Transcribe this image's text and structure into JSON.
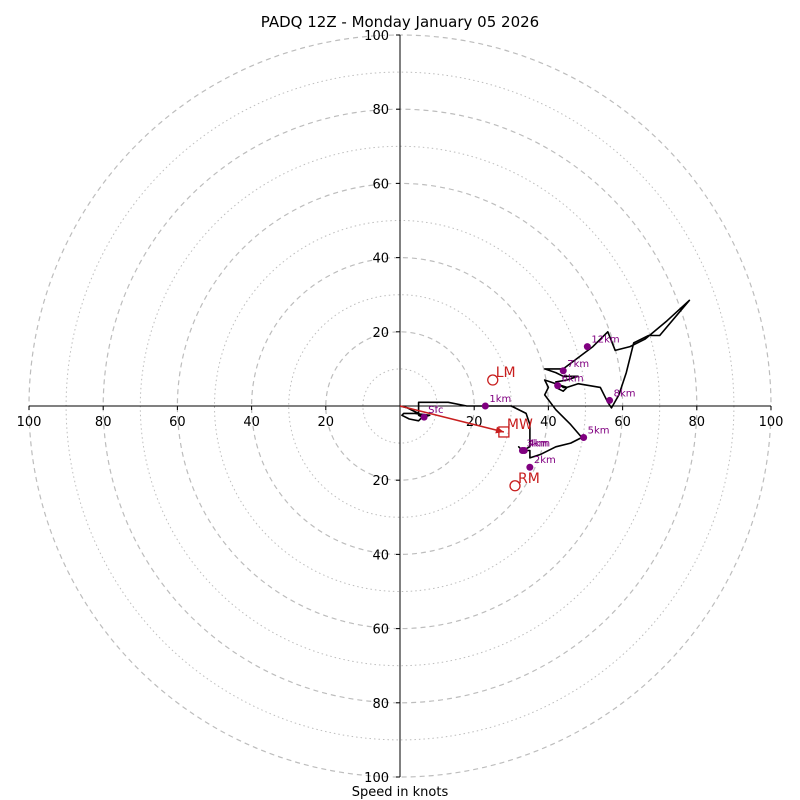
{
  "chart_data": {
    "type": "hodograph",
    "title": "PADQ 12Z - Monday January 05 2026",
    "xlabel": "Speed in knots",
    "ring_values": [
      10,
      20,
      30,
      40,
      50,
      60,
      70,
      80,
      90,
      100
    ],
    "axis_range": [
      -100,
      100
    ],
    "tick_labels": {
      "x_negative": [
        "100",
        "80",
        "60",
        "40",
        "20"
      ],
      "x_positive": [
        "20",
        "40",
        "60",
        "80",
        "100"
      ],
      "y_positive": [
        "100",
        "80",
        "60",
        "40",
        "20"
      ],
      "y_negative": [
        "20",
        "40",
        "60",
        "80",
        "100"
      ]
    },
    "trace": [
      [
        0,
        0
      ],
      [
        2,
        -0.5
      ],
      [
        4,
        -1.5
      ],
      [
        5,
        -2
      ],
      [
        6.5,
        -3
      ],
      [
        8,
        -2.5
      ],
      [
        4,
        -2
      ],
      [
        1,
        -2
      ],
      [
        0.5,
        -2.5
      ],
      [
        2.5,
        -3.5
      ],
      [
        5,
        -4
      ],
      [
        6,
        -3
      ],
      [
        5,
        -2.5
      ],
      [
        5,
        1
      ],
      [
        8,
        1
      ],
      [
        13,
        1
      ],
      [
        18,
        0
      ],
      [
        24,
        0
      ],
      [
        30,
        0
      ],
      [
        34,
        -2
      ],
      [
        35,
        -5
      ],
      [
        35,
        -8
      ],
      [
        35,
        -11
      ],
      [
        33,
        -12
      ],
      [
        32,
        -11
      ],
      [
        33,
        -12
      ],
      [
        35,
        -12
      ],
      [
        35,
        -14
      ],
      [
        38,
        -13
      ],
      [
        42,
        -11
      ],
      [
        46,
        -10
      ],
      [
        49,
        -8.5
      ],
      [
        46,
        -5
      ],
      [
        42,
        -1
      ],
      [
        39,
        3
      ],
      [
        40,
        5
      ],
      [
        39,
        7
      ],
      [
        42,
        6
      ],
      [
        45,
        5
      ],
      [
        48,
        6
      ],
      [
        54,
        5
      ],
      [
        56,
        1
      ],
      [
        57,
        -0.5
      ],
      [
        59,
        3
      ],
      [
        61,
        9
      ],
      [
        63,
        17
      ],
      [
        67,
        19
      ],
      [
        70,
        19
      ],
      [
        78,
        28.5
      ],
      [
        72,
        23
      ],
      [
        66,
        18
      ],
      [
        62,
        16
      ],
      [
        58,
        15
      ],
      [
        56,
        20
      ],
      [
        52,
        16
      ],
      [
        44,
        10
      ],
      [
        39,
        10
      ],
      [
        42,
        9
      ],
      [
        44,
        8
      ],
      [
        48,
        8
      ],
      [
        45,
        7
      ],
      [
        42,
        6.5
      ],
      [
        44,
        5
      ],
      [
        45,
        5
      ],
      [
        44,
        4
      ],
      [
        42,
        5
      ]
    ],
    "height_markers": [
      {
        "label": "Sfc",
        "u": 6.5,
        "v": -3
      },
      {
        "label": "1km",
        "u": 23,
        "v": 0
      },
      {
        "label": "2km",
        "u": 35,
        "v": -16.5
      },
      {
        "label": "3km",
        "u": 33,
        "v": -12
      },
      {
        "label": "4km",
        "u": 33.5,
        "v": -12
      },
      {
        "label": "5km",
        "u": 49.5,
        "v": -8.5
      },
      {
        "label": "6km",
        "u": 42.5,
        "v": 5.5
      },
      {
        "label": "7km",
        "u": 44,
        "v": 9.5
      },
      {
        "label": "8km",
        "u": 56.5,
        "v": 1.5
      },
      {
        "label": "12km",
        "u": 50.5,
        "v": 16
      }
    ],
    "storm_motion": [
      {
        "label": "LM",
        "u": 25,
        "v": 7,
        "marker": "circle"
      },
      {
        "label": "RM",
        "u": 31,
        "v": -21.5,
        "marker": "circle"
      },
      {
        "label": "MW",
        "u": 28,
        "v": -7,
        "marker": "square"
      }
    ],
    "shear_vector": {
      "from": [
        0,
        0
      ],
      "to": [
        28,
        -7
      ]
    },
    "colors": {
      "trace": "#000000",
      "markers": "#800080",
      "motion": "#c81e1e",
      "rings": "#bdbdbd"
    }
  }
}
